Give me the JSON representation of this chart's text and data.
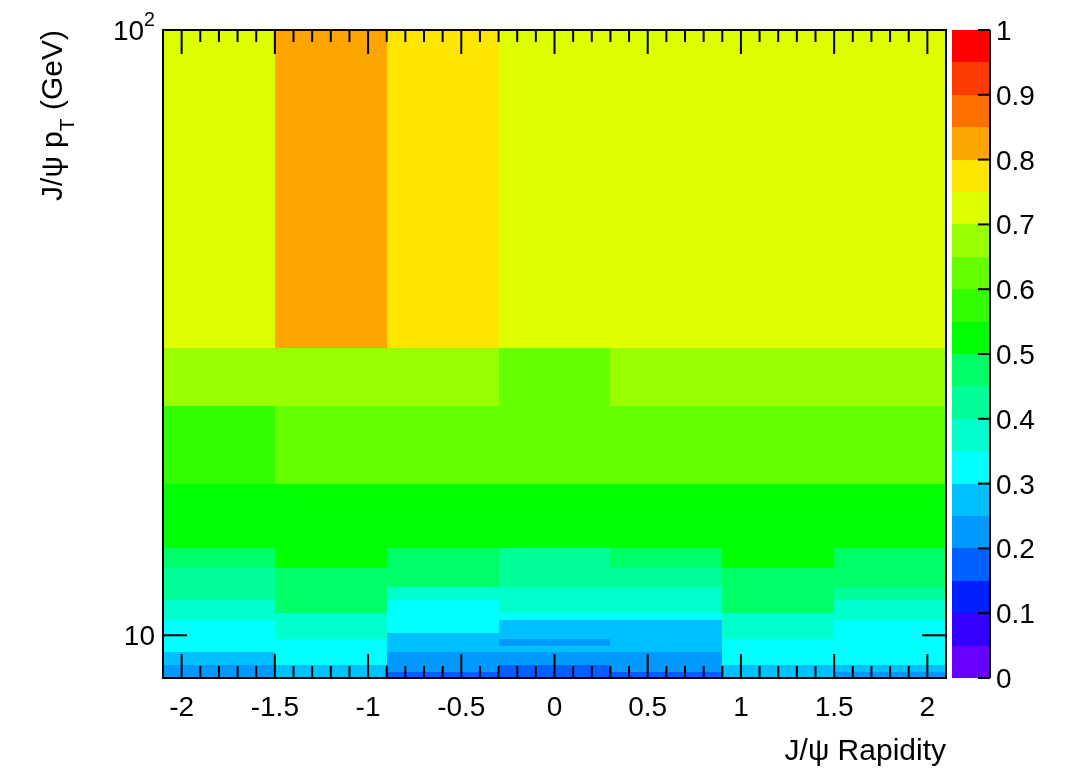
{
  "chart_data": {
    "type": "heatmap",
    "xlabel": "J/ψ Rapidity",
    "ylabel": "J/ψ p$_{T}$ (GeV)",
    "cells": [
      [
        0.72,
        0.82,
        0.77,
        0.72,
        0.72,
        0.72,
        0.72
      ],
      [
        0.72,
        0.82,
        0.77,
        0.72,
        0.72,
        0.72,
        0.72
      ],
      [
        0.72,
        0.82,
        0.77,
        0.72,
        0.72,
        0.72,
        0.72
      ],
      [
        0.72,
        0.82,
        0.77,
        0.72,
        0.72,
        0.72,
        0.72
      ],
      [
        0.72,
        0.82,
        0.77,
        0.72,
        0.72,
        0.72,
        0.72
      ],
      [
        0.72,
        0.82,
        0.77,
        0.72,
        0.72,
        0.72,
        0.72
      ],
      [
        0.72,
        0.82,
        0.77,
        0.72,
        0.72,
        0.72,
        0.72
      ],
      [
        0.72,
        0.82,
        0.77,
        0.72,
        0.72,
        0.72,
        0.72
      ],
      [
        0.72,
        0.82,
        0.77,
        0.72,
        0.72,
        0.72,
        0.72
      ],
      [
        0.72,
        0.82,
        0.77,
        0.72,
        0.72,
        0.72,
        0.72
      ],
      [
        0.72,
        0.82,
        0.77,
        0.72,
        0.72,
        0.72,
        0.72
      ],
      [
        0.72,
        0.82,
        0.77,
        0.72,
        0.72,
        0.72,
        0.72
      ],
      [
        0.72,
        0.82,
        0.77,
        0.72,
        0.72,
        0.72,
        0.72
      ],
      [
        0.72,
        0.82,
        0.77,
        0.72,
        0.72,
        0.72,
        0.72
      ],
      [
        0.72,
        0.82,
        0.77,
        0.72,
        0.72,
        0.72,
        0.72
      ],
      [
        0.72,
        0.82,
        0.77,
        0.72,
        0.72,
        0.72,
        0.72
      ],
      [
        0.72,
        0.82,
        0.77,
        0.72,
        0.72,
        0.72,
        0.72
      ],
      [
        0.72,
        0.82,
        0.77,
        0.72,
        0.72,
        0.72,
        0.72
      ],
      [
        0.72,
        0.82,
        0.77,
        0.72,
        0.72,
        0.72,
        0.72
      ],
      [
        0.72,
        0.82,
        0.77,
        0.72,
        0.72,
        0.72,
        0.72
      ],
      [
        0.72,
        0.82,
        0.77,
        0.72,
        0.72,
        0.72,
        0.72
      ],
      [
        0.72,
        0.82,
        0.77,
        0.72,
        0.72,
        0.72,
        0.72
      ],
      [
        0.72,
        0.82,
        0.77,
        0.72,
        0.72,
        0.72,
        0.72
      ],
      [
        0.72,
        0.82,
        0.77,
        0.72,
        0.72,
        0.72,
        0.72
      ],
      [
        0.72,
        0.82,
        0.77,
        0.72,
        0.72,
        0.72,
        0.72
      ],
      [
        0.72,
        0.82,
        0.77,
        0.72,
        0.72,
        0.72,
        0.72
      ],
      [
        0.72,
        0.82,
        0.77,
        0.72,
        0.72,
        0.72,
        0.72
      ],
      [
        0.72,
        0.82,
        0.77,
        0.72,
        0.72,
        0.72,
        0.72
      ],
      [
        0.72,
        0.82,
        0.77,
        0.72,
        0.72,
        0.72,
        0.72
      ],
      [
        0.72,
        0.82,
        0.77,
        0.72,
        0.72,
        0.72,
        0.72
      ],
      [
        0.72,
        0.82,
        0.77,
        0.72,
        0.72,
        0.72,
        0.72
      ],
      [
        0.72,
        0.82,
        0.77,
        0.72,
        0.72,
        0.72,
        0.72
      ],
      [
        0.72,
        0.82,
        0.77,
        0.72,
        0.72,
        0.72,
        0.72
      ],
      [
        0.72,
        0.82,
        0.77,
        0.72,
        0.72,
        0.72,
        0.72
      ],
      [
        0.72,
        0.82,
        0.77,
        0.72,
        0.72,
        0.72,
        0.72
      ],
      [
        0.72,
        0.82,
        0.77,
        0.72,
        0.72,
        0.72,
        0.72
      ],
      [
        0.72,
        0.82,
        0.77,
        0.72,
        0.72,
        0.72,
        0.72
      ],
      [
        0.72,
        0.82,
        0.77,
        0.72,
        0.72,
        0.72,
        0.72
      ],
      [
        0.72,
        0.82,
        0.77,
        0.72,
        0.72,
        0.72,
        0.72
      ],
      [
        0.72,
        0.82,
        0.77,
        0.72,
        0.72,
        0.72,
        0.72
      ],
      [
        0.72,
        0.82,
        0.77,
        0.72,
        0.72,
        0.72,
        0.72
      ],
      [
        0.72,
        0.82,
        0.77,
        0.72,
        0.72,
        0.72,
        0.72
      ],
      [
        0.72,
        0.82,
        0.77,
        0.72,
        0.72,
        0.72,
        0.72
      ],
      [
        0.72,
        0.82,
        0.77,
        0.72,
        0.72,
        0.72,
        0.72
      ],
      [
        0.72,
        0.82,
        0.77,
        0.72,
        0.72,
        0.72,
        0.72
      ],
      [
        0.72,
        0.82,
        0.77,
        0.72,
        0.72,
        0.72,
        0.72
      ],
      [
        0.72,
        0.82,
        0.77,
        0.72,
        0.72,
        0.72,
        0.72
      ],
      [
        0.72,
        0.82,
        0.77,
        0.72,
        0.72,
        0.72,
        0.72
      ],
      [
        0.72,
        0.82,
        0.77,
        0.72,
        0.72,
        0.72,
        0.72
      ],
      [
        0.67,
        0.67,
        0.67,
        0.62,
        0.67,
        0.67,
        0.67
      ],
      [
        0.67,
        0.67,
        0.67,
        0.62,
        0.67,
        0.67,
        0.67
      ],
      [
        0.67,
        0.67,
        0.67,
        0.62,
        0.67,
        0.67,
        0.67
      ],
      [
        0.67,
        0.67,
        0.67,
        0.62,
        0.67,
        0.67,
        0.67
      ],
      [
        0.67,
        0.67,
        0.67,
        0.62,
        0.67,
        0.67,
        0.67
      ],
      [
        0.67,
        0.67,
        0.67,
        0.62,
        0.67,
        0.67,
        0.67
      ],
      [
        0.67,
        0.67,
        0.67,
        0.62,
        0.67,
        0.67,
        0.67
      ],
      [
        0.67,
        0.67,
        0.67,
        0.62,
        0.67,
        0.67,
        0.67
      ],
      [
        0.67,
        0.67,
        0.67,
        0.62,
        0.67,
        0.67,
        0.67
      ],
      [
        0.57,
        0.62,
        0.62,
        0.62,
        0.62,
        0.62,
        0.62
      ],
      [
        0.57,
        0.62,
        0.62,
        0.62,
        0.62,
        0.62,
        0.62
      ],
      [
        0.57,
        0.62,
        0.62,
        0.62,
        0.62,
        0.62,
        0.62
      ],
      [
        0.57,
        0.62,
        0.62,
        0.62,
        0.62,
        0.62,
        0.62
      ],
      [
        0.57,
        0.62,
        0.62,
        0.62,
        0.62,
        0.62,
        0.62
      ],
      [
        0.57,
        0.62,
        0.62,
        0.62,
        0.62,
        0.62,
        0.62
      ],
      [
        0.57,
        0.62,
        0.62,
        0.62,
        0.62,
        0.62,
        0.62
      ],
      [
        0.57,
        0.62,
        0.62,
        0.62,
        0.62,
        0.62,
        0.62
      ],
      [
        0.57,
        0.62,
        0.62,
        0.62,
        0.62,
        0.62,
        0.62
      ],
      [
        0.57,
        0.62,
        0.62,
        0.62,
        0.62,
        0.62,
        0.62
      ],
      [
        0.57,
        0.62,
        0.62,
        0.62,
        0.62,
        0.62,
        0.62
      ],
      [
        0.57,
        0.62,
        0.62,
        0.62,
        0.62,
        0.62,
        0.62
      ],
      [
        0.52,
        0.52,
        0.52,
        0.52,
        0.52,
        0.52,
        0.52
      ],
      [
        0.52,
        0.52,
        0.52,
        0.52,
        0.52,
        0.52,
        0.52
      ],
      [
        0.52,
        0.52,
        0.52,
        0.52,
        0.52,
        0.52,
        0.52
      ],
      [
        0.52,
        0.52,
        0.52,
        0.52,
        0.52,
        0.52,
        0.52
      ],
      [
        0.52,
        0.52,
        0.52,
        0.52,
        0.52,
        0.52,
        0.52
      ],
      [
        0.52,
        0.52,
        0.52,
        0.52,
        0.52,
        0.52,
        0.52
      ],
      [
        0.52,
        0.52,
        0.52,
        0.52,
        0.52,
        0.52,
        0.52
      ],
      [
        0.52,
        0.52,
        0.52,
        0.52,
        0.52,
        0.52,
        0.52
      ],
      [
        0.52,
        0.52,
        0.52,
        0.52,
        0.52,
        0.52,
        0.52
      ],
      [
        0.52,
        0.52,
        0.52,
        0.52,
        0.52,
        0.52,
        0.52
      ],
      [
        0.47,
        0.52,
        0.47,
        0.42,
        0.47,
        0.52,
        0.47
      ],
      [
        0.47,
        0.52,
        0.47,
        0.42,
        0.47,
        0.52,
        0.47
      ],
      [
        0.47,
        0.52,
        0.47,
        0.42,
        0.47,
        0.52,
        0.47
      ],
      [
        0.42,
        0.47,
        0.47,
        0.42,
        0.42,
        0.47,
        0.47
      ],
      [
        0.42,
        0.47,
        0.47,
        0.42,
        0.42,
        0.47,
        0.47
      ],
      [
        0.42,
        0.47,
        0.47,
        0.42,
        0.42,
        0.47,
        0.47
      ],
      [
        0.42,
        0.47,
        0.37,
        0.37,
        0.37,
        0.47,
        0.42
      ],
      [
        0.42,
        0.47,
        0.37,
        0.37,
        0.37,
        0.47,
        0.42
      ],
      [
        0.37,
        0.47,
        0.32,
        0.37,
        0.37,
        0.47,
        0.37
      ],
      [
        0.37,
        0.47,
        0.32,
        0.37,
        0.37,
        0.47,
        0.37
      ],
      [
        0.37,
        0.37,
        0.32,
        0.32,
        0.32,
        0.37,
        0.37
      ],
      [
        0.32,
        0.37,
        0.32,
        0.27,
        0.27,
        0.37,
        0.32
      ],
      [
        0.32,
        0.37,
        0.32,
        0.27,
        0.27,
        0.37,
        0.32
      ],
      [
        0.32,
        0.37,
        0.27,
        0.27,
        0.27,
        0.37,
        0.32
      ],
      [
        0.32,
        0.32,
        0.27,
        0.22,
        0.27,
        0.32,
        0.32
      ],
      [
        0.32,
        0.32,
        0.27,
        0.27,
        0.27,
        0.32,
        0.32
      ],
      [
        0.27,
        0.32,
        0.22,
        0.22,
        0.22,
        0.32,
        0.32
      ],
      [
        0.27,
        0.32,
        0.22,
        0.22,
        0.22,
        0.32,
        0.32
      ],
      [
        0.22,
        0.27,
        0.22,
        0.17,
        0.22,
        0.27,
        0.27
      ],
      [
        0.22,
        0.27,
        0.17,
        0.17,
        0.17,
        0.27,
        0.22
      ]
    ],
    "xlim": [
      -2.1,
      2.1
    ],
    "xticks": [
      -2,
      -1.5,
      -1,
      -0.5,
      0,
      0.5,
      1,
      1.5,
      2
    ],
    "ylim": [
      8.5,
      100
    ],
    "yticks": [
      10,
      {
        "value": 100,
        "label": "10$^{2}$"
      }
    ],
    "log": "y",
    "clim": [
      0,
      1
    ],
    "cticks": [
      0,
      0.1,
      0.2,
      0.3,
      0.4,
      0.5,
      0.6,
      0.7,
      0.8,
      0.9,
      1
    ]
  }
}
